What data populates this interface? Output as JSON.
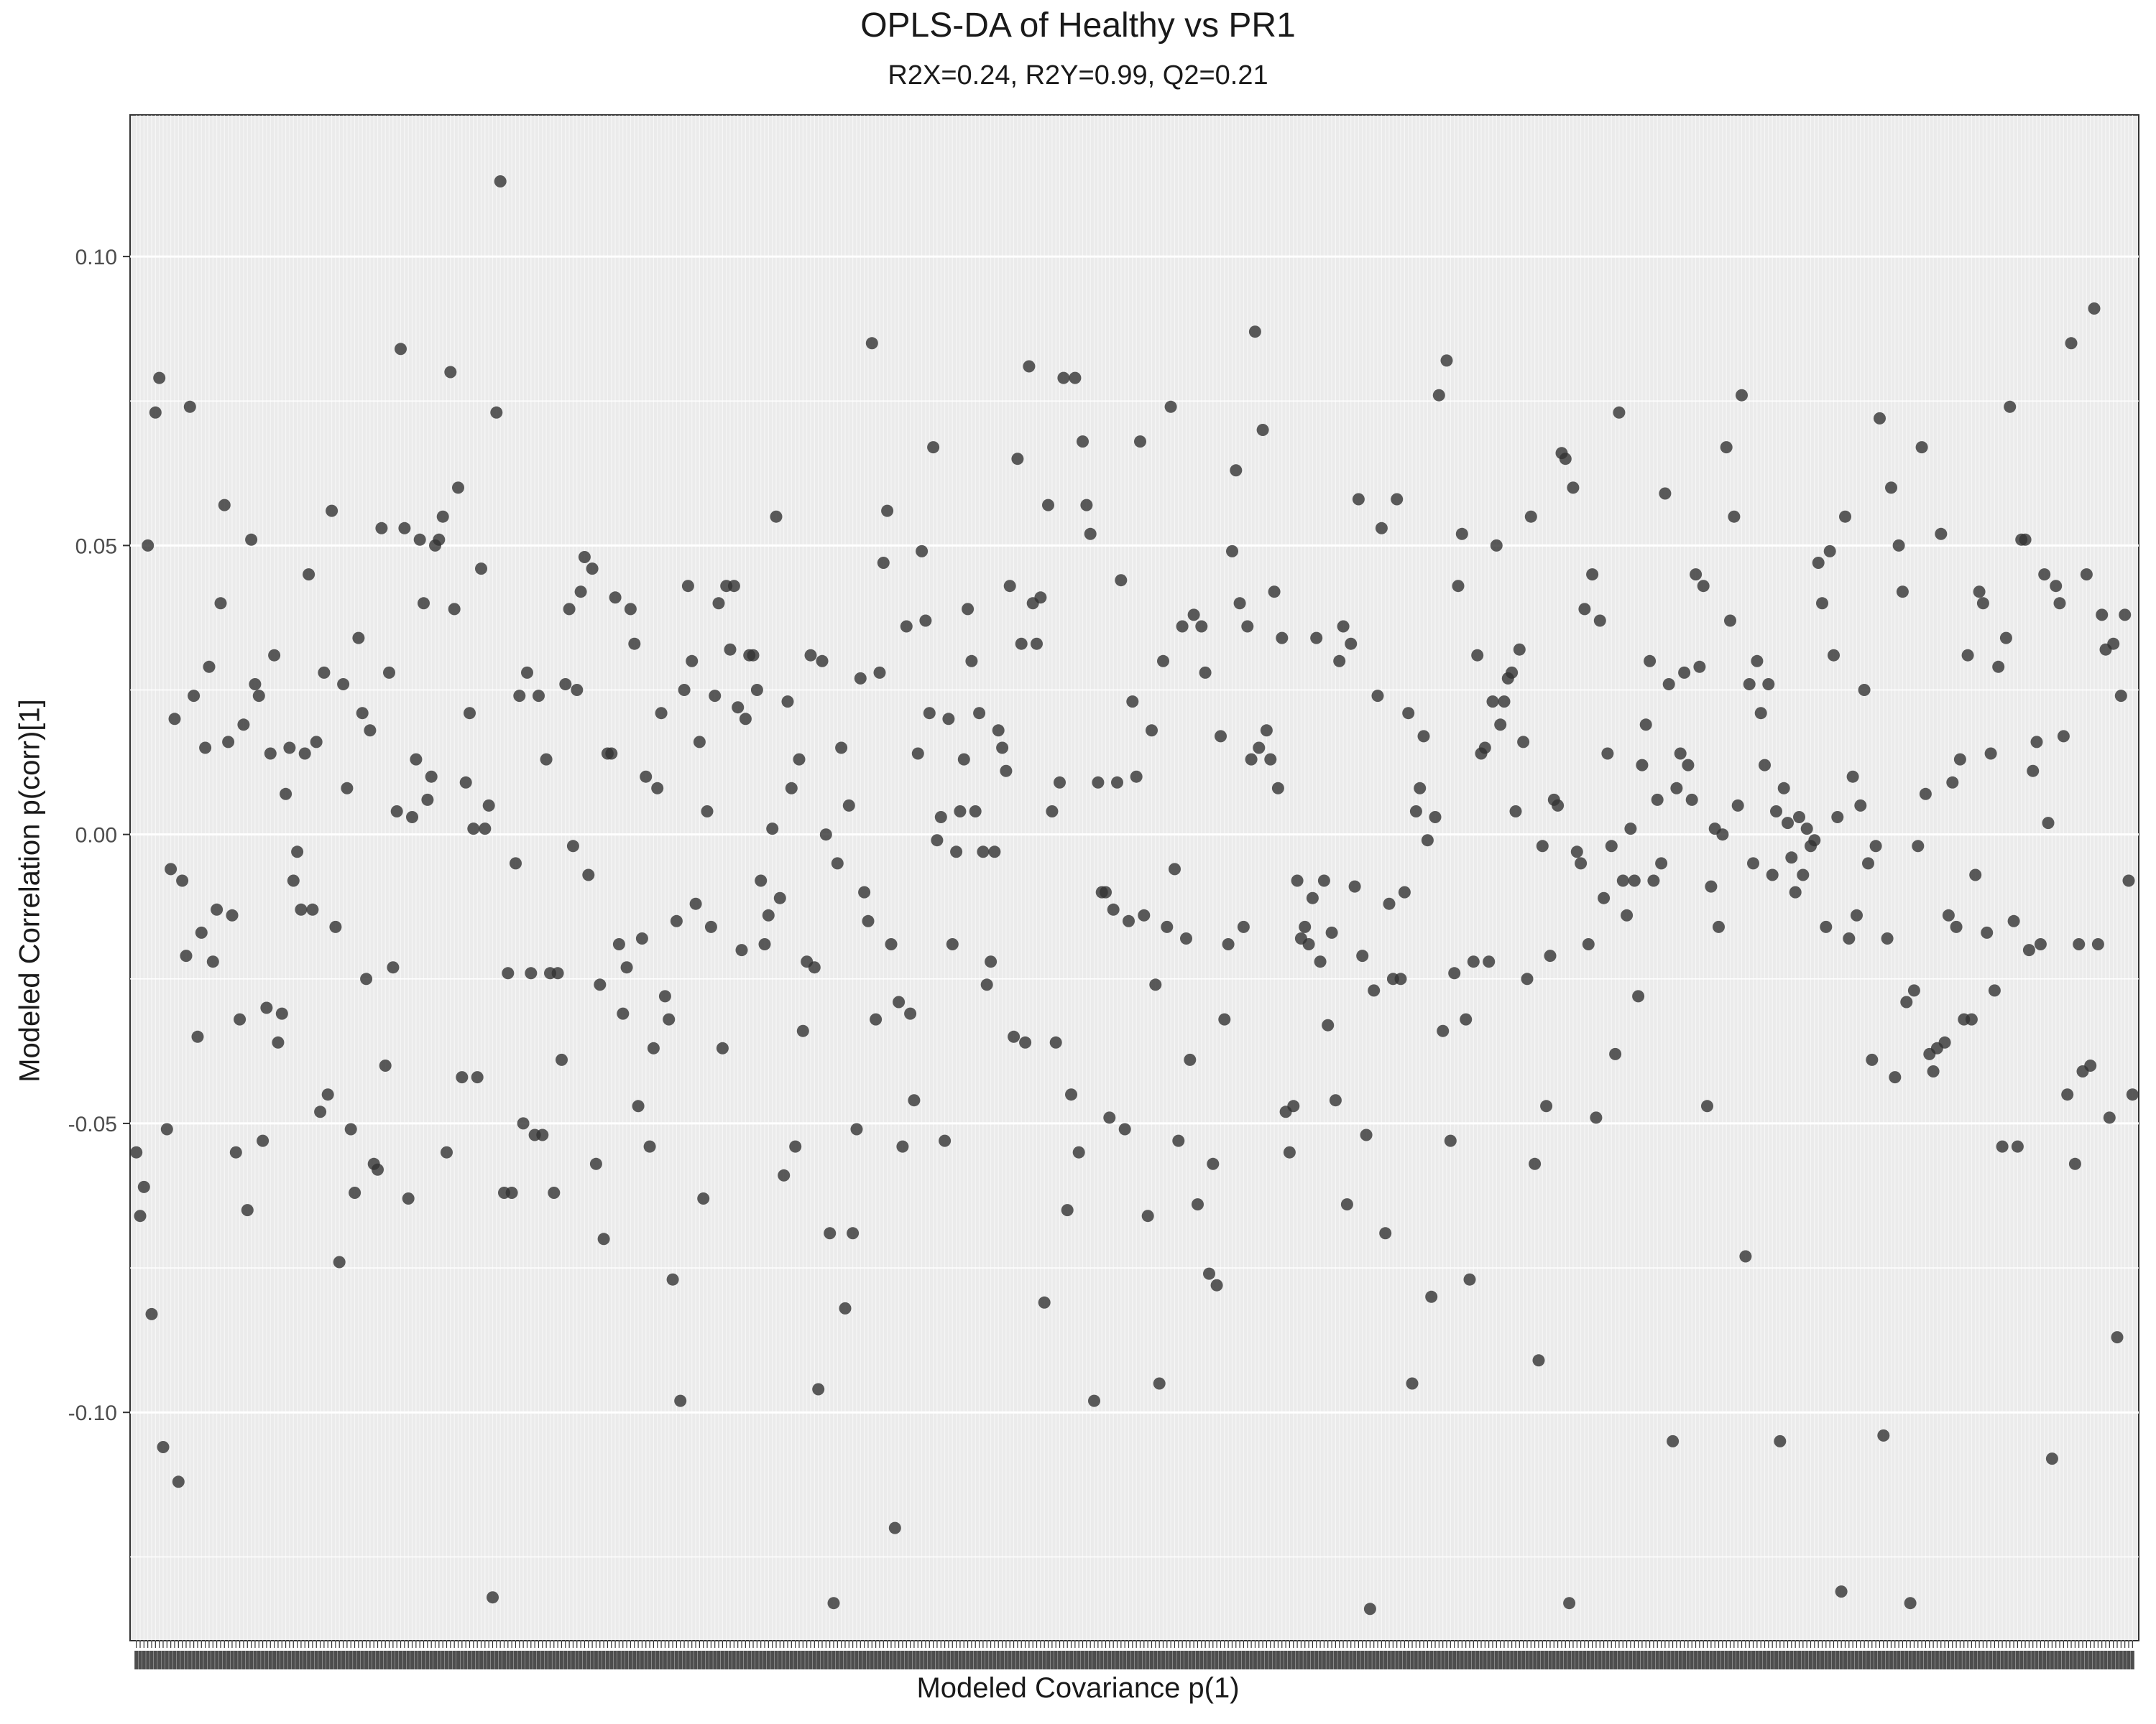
{
  "chart_data": {
    "type": "scatter",
    "title": "OPLS-DA of Healthy vs PR1",
    "subtitle": "R2X=0.24, R2Y=0.99, Q2=0.21",
    "xlabel": "Modeled Covariance p(1)",
    "ylabel": "Modeled Correlation p(corr)[1]",
    "ylim": [
      -0.1395,
      0.1245
    ],
    "y_ticks": [
      0.1,
      0.05,
      0.0,
      -0.05,
      -0.1
    ],
    "y_tick_labels": [
      "0.10",
      "0.05",
      "0.00",
      "-0.05",
      "-0.10"
    ],
    "x_tick_labels_note": "x-axis tick labels are dense overlapping category labels (illegible)",
    "grid": true,
    "legend": "none",
    "colors": {
      "panel": "#ebebeb",
      "point": "#333333",
      "grid": "#ffffff"
    },
    "y": [
      -0.055,
      -0.066,
      -0.061,
      0.05,
      -0.083,
      0.073,
      0.079,
      -0.106,
      -0.051,
      -0.006,
      0.02,
      -0.112,
      -0.008,
      -0.021,
      0.074,
      0.024,
      -0.035,
      -0.017,
      0.015,
      0.029,
      -0.022,
      -0.013,
      0.04,
      0.057,
      0.016,
      -0.014,
      -0.055,
      -0.032,
      0.019,
      -0.065,
      0.051,
      0.026,
      0.024,
      -0.053,
      -0.03,
      0.014,
      0.031,
      -0.036,
      -0.031,
      0.007,
      0.015,
      -0.008,
      -0.003,
      -0.013,
      0.014,
      0.045,
      -0.013,
      0.016,
      -0.048,
      0.028,
      -0.045,
      0.056,
      -0.016,
      -0.074,
      0.026,
      0.008,
      -0.051,
      -0.062,
      0.034,
      0.021,
      -0.025,
      0.018,
      -0.057,
      -0.058,
      0.053,
      -0.04,
      0.028,
      -0.023,
      0.004,
      0.084,
      0.053,
      -0.063,
      0.003,
      0.013,
      0.051,
      0.04,
      0.006,
      0.01,
      0.05,
      0.051,
      0.055,
      -0.055,
      0.08,
      0.039,
      0.06,
      -0.042,
      0.009,
      0.021,
      0.001,
      -0.042,
      0.046,
      0.001,
      0.005,
      -0.132,
      0.073,
      0.113,
      -0.062,
      -0.024,
      -0.062,
      -0.005,
      0.024,
      -0.05,
      0.028,
      -0.024,
      -0.052,
      0.024,
      -0.052,
      0.013,
      -0.024,
      -0.062,
      -0.024,
      -0.039,
      0.026,
      0.039,
      -0.002,
      0.025,
      0.042,
      0.048,
      -0.007,
      0.046,
      -0.057,
      -0.026,
      -0.07,
      0.014,
      0.014,
      0.041,
      -0.019,
      -0.031,
      -0.023,
      0.039,
      0.033,
      -0.047,
      -0.018,
      0.01,
      -0.054,
      -0.037,
      0.008,
      0.021,
      -0.028,
      -0.032,
      -0.077,
      -0.015,
      -0.098,
      0.025,
      0.043,
      0.03,
      -0.012,
      0.016,
      -0.063,
      0.004,
      -0.016,
      0.024,
      0.04,
      -0.037,
      0.043,
      0.032,
      0.043,
      0.022,
      -0.02,
      0.02,
      0.031,
      0.031,
      0.025,
      -0.008,
      -0.019,
      -0.014,
      0.001,
      0.055,
      -0.011,
      -0.059,
      0.023,
      0.008,
      -0.054,
      0.013,
      -0.034,
      -0.022,
      0.031,
      -0.023,
      -0.096,
      0.03,
      0.0,
      -0.069,
      -0.133,
      -0.005,
      0.015,
      -0.082,
      0.005,
      -0.069,
      -0.051,
      0.027,
      -0.01,
      -0.015,
      0.085,
      -0.032,
      0.028,
      0.047,
      0.056,
      -0.019,
      -0.12,
      -0.029,
      -0.054,
      0.036,
      -0.031,
      -0.046,
      0.014,
      0.049,
      0.037,
      0.021,
      0.067,
      -0.001,
      0.003,
      -0.053,
      0.02,
      -0.019,
      -0.003,
      0.004,
      0.013,
      0.039,
      0.03,
      0.004,
      0.021,
      -0.003,
      -0.026,
      -0.022,
      -0.003,
      0.018,
      0.015,
      0.011,
      0.043,
      -0.035,
      0.065,
      0.033,
      -0.036,
      0.081,
      0.04,
      0.033,
      0.041,
      -0.081,
      0.057,
      0.004,
      -0.036,
      0.009,
      0.079,
      -0.065,
      -0.045,
      0.079,
      -0.055,
      0.068,
      0.057,
      0.052,
      -0.098,
      0.009,
      -0.01,
      -0.01,
      -0.049,
      -0.013,
      0.009,
      0.044,
      -0.051,
      -0.015,
      0.023,
      0.01,
      0.068,
      -0.014,
      -0.066,
      0.018,
      -0.026,
      -0.095,
      0.03,
      -0.016,
      0.074,
      -0.006,
      -0.053,
      0.036,
      -0.018,
      -0.039,
      0.038,
      -0.064,
      0.036,
      0.028,
      -0.076,
      -0.057,
      -0.078,
      0.017,
      -0.032,
      -0.019,
      0.049,
      0.063,
      0.04,
      -0.016,
      0.036,
      0.013,
      0.087,
      0.015,
      0.07,
      0.018,
      0.013,
      0.042,
      0.008,
      0.034,
      -0.048,
      -0.055,
      -0.047,
      -0.008,
      -0.018,
      -0.016,
      -0.019,
      -0.011,
      0.034,
      -0.022,
      -0.008,
      -0.033,
      -0.017,
      -0.046,
      0.03,
      0.036,
      -0.064,
      0.033,
      -0.009,
      0.058,
      -0.021,
      -0.052,
      -0.134,
      -0.027,
      0.024,
      0.053,
      -0.069,
      -0.012,
      -0.025,
      0.058,
      -0.025,
      -0.01,
      0.021,
      -0.095,
      0.004,
      0.008,
      0.017,
      -0.001,
      -0.08,
      0.003,
      0.076,
      -0.034,
      0.082,
      -0.053,
      -0.024,
      0.043,
      0.052,
      -0.032,
      -0.077,
      -0.022,
      0.031,
      0.014,
      0.015,
      -0.022,
      0.023,
      0.05,
      0.019,
      0.023,
      0.027,
      0.028,
      0.004,
      0.032,
      0.016,
      -0.025,
      0.055,
      -0.057,
      -0.091,
      -0.002,
      -0.047,
      -0.021,
      0.006,
      0.005,
      0.066,
      0.065,
      -0.133,
      0.06,
      -0.003,
      -0.005,
      0.039,
      -0.019,
      0.045,
      -0.049,
      0.037,
      -0.011,
      0.014,
      -0.002,
      -0.038,
      0.073,
      -0.008,
      -0.014,
      0.001,
      -0.008,
      -0.028,
      0.012,
      0.019,
      0.03,
      -0.008,
      0.006,
      -0.005,
      0.059,
      0.026,
      -0.105,
      0.008,
      0.014,
      0.028,
      0.012,
      0.006,
      0.045,
      0.029,
      0.043,
      -0.047,
      -0.009,
      0.001,
      -0.016,
      0.0,
      0.067,
      0.037,
      0.055,
      0.005,
      0.076,
      -0.073,
      0.026,
      -0.005,
      0.03,
      0.021,
      0.012,
      0.026,
      -0.007,
      0.004,
      -0.105,
      0.008,
      0.002,
      -0.004,
      -0.01,
      0.003,
      -0.007,
      0.001,
      -0.002,
      -0.001,
      0.047,
      0.04,
      -0.016,
      0.049,
      0.031,
      0.003,
      -0.131,
      0.055,
      -0.018,
      0.01,
      -0.014,
      0.005,
      0.025,
      -0.005,
      -0.039,
      -0.002,
      0.072,
      -0.104,
      -0.018,
      0.06,
      -0.042,
      0.05,
      0.042,
      -0.029,
      -0.133,
      -0.027,
      -0.002,
      0.067,
      0.007,
      -0.038,
      -0.041,
      -0.037,
      0.052,
      -0.036,
      -0.014,
      0.009,
      -0.016,
      0.013,
      -0.032,
      0.031,
      -0.032,
      -0.007,
      0.042,
      0.04,
      -0.017,
      0.014,
      -0.027,
      0.029,
      -0.054,
      0.034,
      0.074,
      -0.015,
      -0.054,
      0.051,
      0.051,
      -0.02,
      0.011,
      0.016,
      -0.019,
      0.045,
      0.002,
      -0.108,
      0.043,
      0.04,
      0.017,
      -0.045,
      0.085,
      -0.057,
      -0.019,
      -0.041,
      0.045,
      -0.04,
      0.091,
      -0.019,
      0.038,
      0.032,
      -0.049,
      0.033,
      -0.087,
      0.024,
      0.038,
      -0.008,
      -0.045
    ]
  }
}
